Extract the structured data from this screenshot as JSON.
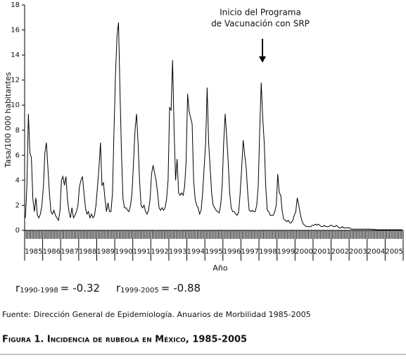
{
  "chart_data": {
    "type": "line",
    "y_label": "Tasa/100 000 habitantes",
    "x_label": "Año",
    "annotation": [
      "Inicio del Programa",
      "de Vacunación con SRP"
    ],
    "color": "#000000",
    "ylim": [
      0,
      18
    ],
    "yticks": [
      0,
      2,
      4,
      6,
      8,
      10,
      12,
      14,
      16,
      18
    ],
    "categories": [
      null,
      null,
      null,
      null,
      null,
      null,
      "1985",
      null,
      null,
      null,
      null,
      null,
      null,
      null,
      null,
      null,
      null,
      null,
      "1986",
      null,
      null,
      null,
      null,
      null,
      null,
      null,
      null,
      null,
      null,
      null,
      "1987",
      null,
      null,
      null,
      null,
      null,
      null,
      null,
      null,
      null,
      null,
      null,
      "1988",
      null,
      null,
      null,
      null,
      null,
      null,
      null,
      null,
      null,
      null,
      null,
      "1989",
      null,
      null,
      null,
      null,
      null,
      null,
      null,
      null,
      null,
      null,
      null,
      "1990",
      null,
      null,
      null,
      null,
      null,
      null,
      null,
      null,
      null,
      null,
      null,
      "1991",
      null,
      null,
      null,
      null,
      null,
      null,
      null,
      null,
      null,
      null,
      null,
      "1992",
      null,
      null,
      null,
      null,
      null,
      null,
      null,
      null,
      null,
      null,
      null,
      "1993",
      null,
      null,
      null,
      null,
      null,
      null,
      null,
      null,
      null,
      null,
      null,
      "1994",
      null,
      null,
      null,
      null,
      null,
      null,
      null,
      null,
      null,
      null,
      null,
      "1995",
      null,
      null,
      null,
      null,
      null,
      null,
      null,
      null,
      null,
      null,
      null,
      "1996",
      null,
      null,
      null,
      null,
      null,
      null,
      null,
      null,
      null,
      null,
      null,
      "1997",
      null,
      null,
      null,
      null,
      null,
      null,
      null,
      null,
      null,
      null,
      null,
      "1998",
      null,
      null,
      null,
      null,
      null,
      null,
      null,
      null,
      null,
      null,
      null,
      "1999",
      null,
      null,
      null,
      null,
      null,
      null,
      null,
      null,
      null,
      null,
      null,
      "2000",
      null,
      null,
      null,
      null,
      null,
      null,
      null,
      null,
      null,
      null,
      null,
      "2001",
      null,
      null,
      null,
      null,
      null,
      null,
      null,
      null,
      null,
      null,
      null,
      "2002",
      null,
      null,
      null,
      null,
      null,
      null,
      null,
      null,
      null,
      null,
      null,
      "2003",
      null,
      null,
      null,
      null,
      null,
      null,
      null,
      null,
      null,
      null,
      null,
      "2004",
      null,
      null,
      null,
      null,
      null,
      null,
      null,
      null,
      null,
      null,
      null,
      "2005",
      null,
      null,
      null,
      null,
      null
    ],
    "values": [
      1.0,
      3.5,
      9.3,
      6.2,
      5.8,
      2.5,
      1.5,
      2.6,
      1.2,
      1.0,
      1.3,
      2.0,
      3.5,
      6.2,
      7.0,
      5.0,
      3.0,
      1.5,
      1.3,
      1.6,
      1.2,
      1.0,
      0.8,
      1.5,
      4.0,
      4.3,
      3.6,
      4.3,
      2.5,
      1.5,
      1.0,
      1.8,
      1.0,
      1.2,
      1.5,
      2.0,
      3.5,
      4.0,
      4.3,
      3.0,
      1.8,
      1.3,
      1.5,
      1.0,
      1.3,
      1.0,
      1.2,
      2.0,
      3.5,
      5.0,
      7.0,
      3.6,
      3.8,
      2.5,
      1.5,
      2.2,
      1.5,
      1.5,
      3.0,
      8.0,
      12.5,
      15.5,
      16.6,
      11.0,
      6.0,
      2.5,
      1.8,
      1.8,
      1.6,
      1.5,
      2.0,
      3.0,
      5.5,
      8.0,
      9.3,
      7.0,
      4.0,
      2.0,
      1.8,
      2.0,
      1.5,
      1.3,
      1.6,
      2.5,
      4.5,
      5.2,
      4.6,
      4.0,
      3.0,
      1.8,
      1.6,
      1.8,
      1.6,
      1.8,
      2.5,
      4.0,
      9.8,
      9.6,
      13.6,
      8.0,
      4.0,
      5.7,
      3.0,
      2.8,
      3.0,
      2.8,
      3.5,
      5.5,
      10.9,
      9.5,
      9.0,
      8.5,
      4.0,
      2.5,
      2.0,
      1.8,
      1.3,
      1.6,
      3.0,
      5.0,
      7.0,
      11.4,
      7.0,
      5.0,
      3.0,
      2.0,
      1.8,
      1.6,
      1.5,
      1.4,
      2.0,
      3.5,
      7.0,
      9.3,
      7.5,
      5.5,
      3.0,
      1.8,
      1.5,
      1.5,
      1.3,
      1.2,
      1.5,
      3.0,
      5.0,
      7.2,
      6.0,
      5.0,
      3.0,
      1.6,
      1.5,
      1.6,
      1.5,
      1.5,
      2.0,
      3.5,
      8.0,
      11.8,
      9.0,
      7.0,
      3.5,
      1.6,
      1.5,
      1.2,
      1.2,
      1.2,
      1.5,
      2.0,
      4.5,
      3.0,
      2.8,
      1.5,
      0.9,
      0.8,
      0.7,
      0.8,
      0.6,
      0.6,
      0.8,
      1.2,
      1.5,
      2.6,
      2.0,
      1.3,
      0.8,
      0.5,
      0.4,
      0.3,
      0.3,
      0.3,
      0.3,
      0.4,
      0.4,
      0.5,
      0.4,
      0.5,
      0.4,
      0.3,
      0.3,
      0.4,
      0.3,
      0.3,
      0.3,
      0.4,
      0.4,
      0.3,
      0.3,
      0.4,
      0.3,
      0.2,
      0.2,
      0.3,
      0.2,
      0.2,
      0.2,
      0.2,
      0.2,
      0.1,
      0.1,
      0.1,
      0.1,
      0.1,
      0.1,
      0.1,
      0.1,
      0.1,
      0.1,
      0.1,
      0.1,
      0.1,
      0.1,
      0.05,
      0.1,
      0.05,
      0.05,
      0.05,
      0.05,
      0.05,
      0.05,
      0.05,
      0.05,
      0.05,
      0.05,
      0.05,
      0.05,
      0.05,
      0.05,
      0.05,
      0.05,
      0.05,
      0.05,
      0.05
    ],
    "stats": [
      {
        "symbol": "r",
        "range": "1990-1998",
        "equals": "=",
        "value": -0.32
      },
      {
        "symbol": "r",
        "range": "1999-2005",
        "equals": "=",
        "value": -0.88
      }
    ],
    "source": "Fuente: Dirección General de Epidemiología.  Anuarios de Morbilidad 1985-2005",
    "caption": "Figura 1. Incidencia de rubeola en México, 1985-2005"
  }
}
